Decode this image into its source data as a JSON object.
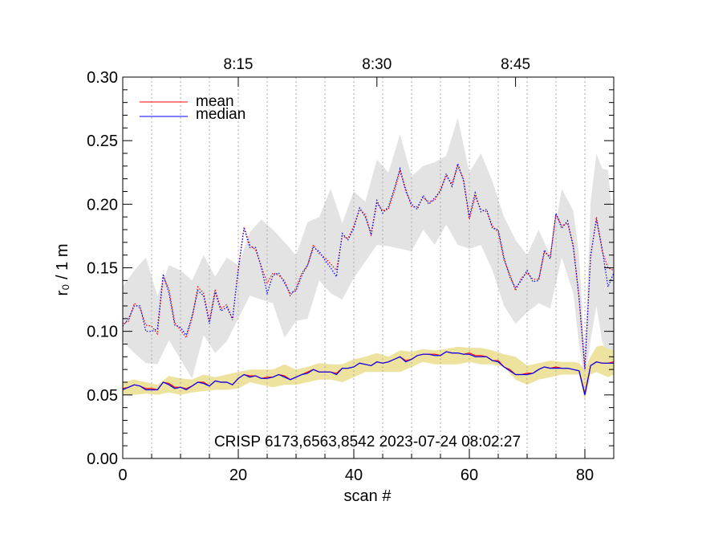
{
  "chart_data": {
    "type": "line",
    "xlabel": "scan #",
    "ylabel": "r₀ / 1 m",
    "xlim": [
      0,
      85
    ],
    "ylim": [
      0,
      0.3
    ],
    "x_ticks": [
      0,
      20,
      40,
      60,
      80
    ],
    "x_tick_labels": [
      "0",
      "20",
      "40",
      "60",
      "80"
    ],
    "y_ticks": [
      0,
      0.05,
      0.1,
      0.15,
      0.2,
      0.25,
      0.3
    ],
    "y_tick_labels": [
      "0.00",
      "0.05",
      "0.10",
      "0.15",
      "0.20",
      "0.25",
      "0.30"
    ],
    "top_axis": {
      "ticks": [
        20,
        44,
        68
      ],
      "labels": [
        "8:15",
        "8:30",
        "8:45"
      ]
    },
    "vertical_gridlines_x": [
      5,
      10,
      15,
      20,
      25,
      30,
      35,
      40,
      45,
      50,
      55,
      60,
      65,
      70,
      75,
      80
    ],
    "annotation": "CRISP 6173,6563,8542 2023-07-24 08:02:27",
    "legend": [
      {
        "label": "mean",
        "color": "#ff0000"
      },
      {
        "label": "median",
        "color": "#0000ff"
      }
    ],
    "colors": {
      "upper_band": "#e3e3e3",
      "lower_band": "#ede29e",
      "mean": "#ff0000",
      "median": "#0000ff",
      "gridline": "#aaaaaa"
    },
    "series": [
      {
        "name": "upper mean",
        "style": "dotted",
        "color": "#ff0000",
        "x": [
          0,
          1,
          2,
          3,
          4,
          5,
          6,
          7,
          8,
          9,
          10,
          11,
          12,
          13,
          14,
          15,
          16,
          17,
          18,
          19,
          20,
          21,
          22,
          23,
          24,
          25,
          26,
          27,
          28,
          29,
          30,
          31,
          32,
          33,
          34,
          35,
          36,
          37,
          38,
          39,
          40,
          41,
          42,
          43,
          44,
          45,
          46,
          47,
          48,
          49,
          50,
          51,
          52,
          53,
          54,
          55,
          56,
          57,
          58,
          59,
          60,
          61,
          62,
          63,
          64,
          65,
          66,
          67,
          68,
          69,
          70,
          71,
          72,
          73,
          74,
          75,
          76,
          77,
          78,
          79,
          80,
          81,
          82,
          83,
          84,
          85
        ],
        "values": [
          0.106,
          0.108,
          0.122,
          0.118,
          0.105,
          0.104,
          0.098,
          0.143,
          0.133,
          0.107,
          0.101,
          0.095,
          0.11,
          0.135,
          0.13,
          0.108,
          0.133,
          0.118,
          0.121,
          0.109,
          0.15,
          0.182,
          0.168,
          0.164,
          0.151,
          0.138,
          0.146,
          0.144,
          0.14,
          0.128,
          0.134,
          0.146,
          0.152,
          0.168,
          0.161,
          0.158,
          0.153,
          0.148,
          0.175,
          0.173,
          0.183,
          0.196,
          0.192,
          0.175,
          0.201,
          0.195,
          0.196,
          0.21,
          0.226,
          0.212,
          0.198,
          0.198,
          0.205,
          0.202,
          0.203,
          0.212,
          0.222,
          0.216,
          0.23,
          0.22,
          0.188,
          0.206,
          0.196,
          0.194,
          0.183,
          0.178,
          0.156,
          0.145,
          0.132,
          0.142,
          0.146,
          0.141,
          0.141,
          0.162,
          0.159,
          0.192,
          0.183,
          0.185,
          0.168,
          0.125,
          0.072,
          0.158,
          0.19,
          0.163,
          0.15,
          0.148
        ]
      },
      {
        "name": "upper median",
        "style": "dotted",
        "color": "#0000ff",
        "x": [
          0,
          1,
          2,
          3,
          4,
          5,
          6,
          7,
          8,
          9,
          10,
          11,
          12,
          13,
          14,
          15,
          16,
          17,
          18,
          19,
          20,
          21,
          22,
          23,
          24,
          25,
          26,
          27,
          28,
          29,
          30,
          31,
          32,
          33,
          34,
          35,
          36,
          37,
          38,
          39,
          40,
          41,
          42,
          43,
          44,
          45,
          46,
          47,
          48,
          49,
          50,
          51,
          52,
          53,
          54,
          55,
          56,
          57,
          58,
          59,
          60,
          61,
          62,
          63,
          64,
          65,
          66,
          67,
          68,
          69,
          70,
          71,
          72,
          73,
          74,
          75,
          76,
          77,
          78,
          79,
          80,
          81,
          82,
          83,
          84,
          85
        ],
        "values": [
          0.104,
          0.11,
          0.12,
          0.12,
          0.1,
          0.1,
          0.102,
          0.145,
          0.13,
          0.105,
          0.103,
          0.097,
          0.112,
          0.132,
          0.128,
          0.106,
          0.131,
          0.116,
          0.119,
          0.11,
          0.148,
          0.181,
          0.166,
          0.166,
          0.15,
          0.13,
          0.144,
          0.146,
          0.138,
          0.13,
          0.132,
          0.144,
          0.152,
          0.166,
          0.163,
          0.156,
          0.15,
          0.143,
          0.177,
          0.172,
          0.181,
          0.197,
          0.19,
          0.177,
          0.203,
          0.193,
          0.198,
          0.212,
          0.228,
          0.21,
          0.2,
          0.196,
          0.207,
          0.2,
          0.205,
          0.21,
          0.224,
          0.214,
          0.232,
          0.218,
          0.19,
          0.209,
          0.194,
          0.196,
          0.181,
          0.18,
          0.158,
          0.143,
          0.134,
          0.14,
          0.148,
          0.139,
          0.14,
          0.164,
          0.157,
          0.193,
          0.181,
          0.187,
          0.166,
          0.127,
          0.07,
          0.16,
          0.188,
          0.165,
          0.135,
          0.146
        ]
      },
      {
        "name": "lower mean",
        "style": "solid",
        "color": "#ff0000",
        "x": [
          0,
          1,
          2,
          3,
          4,
          5,
          6,
          7,
          8,
          9,
          10,
          11,
          12,
          13,
          14,
          15,
          16,
          17,
          18,
          19,
          20,
          21,
          22,
          23,
          24,
          25,
          26,
          27,
          28,
          29,
          30,
          31,
          32,
          33,
          34,
          35,
          36,
          37,
          38,
          39,
          40,
          41,
          42,
          43,
          44,
          45,
          46,
          47,
          48,
          49,
          50,
          51,
          52,
          53,
          54,
          55,
          56,
          57,
          58,
          59,
          60,
          61,
          62,
          63,
          64,
          65,
          66,
          67,
          68,
          69,
          70,
          71,
          72,
          73,
          74,
          75,
          76,
          77,
          78,
          79,
          80,
          81,
          82,
          83,
          84,
          85
        ],
        "values": [
          0.055,
          0.056,
          0.058,
          0.057,
          0.055,
          0.055,
          0.054,
          0.06,
          0.059,
          0.056,
          0.056,
          0.055,
          0.057,
          0.06,
          0.06,
          0.057,
          0.061,
          0.06,
          0.06,
          0.058,
          0.063,
          0.066,
          0.065,
          0.065,
          0.063,
          0.064,
          0.064,
          0.066,
          0.065,
          0.062,
          0.064,
          0.066,
          0.068,
          0.07,
          0.068,
          0.068,
          0.068,
          0.067,
          0.071,
          0.071,
          0.072,
          0.075,
          0.074,
          0.073,
          0.076,
          0.075,
          0.076,
          0.078,
          0.08,
          0.077,
          0.078,
          0.081,
          0.082,
          0.082,
          0.082,
          0.081,
          0.084,
          0.083,
          0.083,
          0.082,
          0.083,
          0.081,
          0.081,
          0.08,
          0.077,
          0.077,
          0.072,
          0.07,
          0.066,
          0.066,
          0.067,
          0.067,
          0.07,
          0.072,
          0.071,
          0.072,
          0.071,
          0.071,
          0.07,
          0.069,
          0.051,
          0.073,
          0.076,
          0.075,
          0.075,
          0.076
        ]
      },
      {
        "name": "lower median",
        "style": "solid",
        "color": "#0000ff",
        "x": [
          0,
          1,
          2,
          3,
          4,
          5,
          6,
          7,
          8,
          9,
          10,
          11,
          12,
          13,
          14,
          15,
          16,
          17,
          18,
          19,
          20,
          21,
          22,
          23,
          24,
          25,
          26,
          27,
          28,
          29,
          30,
          31,
          32,
          33,
          34,
          35,
          36,
          37,
          38,
          39,
          40,
          41,
          42,
          43,
          44,
          45,
          46,
          47,
          48,
          49,
          50,
          51,
          52,
          53,
          54,
          55,
          56,
          57,
          58,
          59,
          60,
          61,
          62,
          63,
          64,
          65,
          66,
          67,
          68,
          69,
          70,
          71,
          72,
          73,
          74,
          75,
          76,
          77,
          78,
          79,
          80,
          81,
          82,
          83,
          84,
          85
        ],
        "values": [
          0.054,
          0.056,
          0.058,
          0.057,
          0.054,
          0.054,
          0.054,
          0.06,
          0.058,
          0.055,
          0.056,
          0.054,
          0.057,
          0.06,
          0.059,
          0.057,
          0.061,
          0.06,
          0.06,
          0.058,
          0.063,
          0.066,
          0.064,
          0.065,
          0.063,
          0.063,
          0.064,
          0.066,
          0.064,
          0.062,
          0.064,
          0.066,
          0.067,
          0.07,
          0.068,
          0.068,
          0.068,
          0.066,
          0.071,
          0.071,
          0.072,
          0.075,
          0.074,
          0.073,
          0.076,
          0.075,
          0.076,
          0.078,
          0.08,
          0.076,
          0.078,
          0.081,
          0.082,
          0.082,
          0.081,
          0.081,
          0.084,
          0.083,
          0.083,
          0.082,
          0.082,
          0.08,
          0.08,
          0.08,
          0.077,
          0.076,
          0.072,
          0.069,
          0.066,
          0.066,
          0.066,
          0.067,
          0.07,
          0.072,
          0.071,
          0.071,
          0.071,
          0.071,
          0.07,
          0.069,
          0.05,
          0.073,
          0.076,
          0.075,
          0.075,
          0.075
        ]
      }
    ],
    "bands": [
      {
        "name": "upper range",
        "color": "#e3e3e3",
        "x": [
          0,
          2,
          4,
          6,
          8,
          10,
          12,
          14,
          16,
          18,
          20,
          22,
          24,
          26,
          28,
          30,
          32,
          34,
          36,
          38,
          40,
          42,
          44,
          46,
          48,
          50,
          52,
          54,
          56,
          58,
          60,
          62,
          64,
          66,
          68,
          70,
          72,
          74,
          76,
          78,
          79,
          80,
          81,
          82,
          83,
          84,
          85
        ],
        "upper": [
          0.135,
          0.148,
          0.158,
          0.128,
          0.152,
          0.148,
          0.14,
          0.16,
          0.143,
          0.158,
          0.152,
          0.178,
          0.188,
          0.18,
          0.17,
          0.16,
          0.186,
          0.19,
          0.212,
          0.185,
          0.21,
          0.202,
          0.235,
          0.225,
          0.255,
          0.222,
          0.23,
          0.233,
          0.238,
          0.268,
          0.225,
          0.24,
          0.218,
          0.19,
          0.172,
          0.16,
          0.18,
          0.16,
          0.212,
          0.195,
          0.16,
          0.08,
          0.202,
          0.24,
          0.228,
          0.227,
          0.18
        ],
        "lower": [
          0.092,
          0.083,
          0.075,
          0.074,
          0.093,
          0.078,
          0.063,
          0.097,
          0.083,
          0.092,
          0.11,
          0.128,
          0.125,
          0.122,
          0.095,
          0.108,
          0.11,
          0.14,
          0.13,
          0.125,
          0.142,
          0.155,
          0.168,
          0.167,
          0.165,
          0.163,
          0.18,
          0.168,
          0.184,
          0.168,
          0.165,
          0.168,
          0.148,
          0.12,
          0.106,
          0.115,
          0.122,
          0.118,
          0.158,
          0.13,
          0.09,
          0.062,
          0.093,
          0.12,
          0.092,
          0.08,
          0.086
        ]
      },
      {
        "name": "lower range",
        "color": "#ede29e",
        "x": [
          0,
          2,
          4,
          6,
          8,
          10,
          12,
          14,
          16,
          18,
          20,
          22,
          24,
          26,
          28,
          30,
          32,
          34,
          36,
          38,
          40,
          42,
          44,
          46,
          48,
          50,
          52,
          54,
          56,
          58,
          60,
          62,
          64,
          66,
          68,
          70,
          72,
          74,
          76,
          78,
          79,
          80,
          81,
          82,
          83,
          84,
          85
        ],
        "upper": [
          0.06,
          0.062,
          0.06,
          0.058,
          0.065,
          0.063,
          0.062,
          0.066,
          0.064,
          0.066,
          0.068,
          0.07,
          0.07,
          0.07,
          0.074,
          0.07,
          0.072,
          0.075,
          0.074,
          0.074,
          0.078,
          0.08,
          0.083,
          0.08,
          0.085,
          0.084,
          0.086,
          0.085,
          0.086,
          0.088,
          0.087,
          0.087,
          0.085,
          0.082,
          0.08,
          0.073,
          0.075,
          0.077,
          0.076,
          0.076,
          0.075,
          0.07,
          0.08,
          0.088,
          0.089,
          0.086,
          0.085
        ],
        "lower": [
          0.05,
          0.05,
          0.051,
          0.05,
          0.052,
          0.05,
          0.052,
          0.053,
          0.054,
          0.054,
          0.055,
          0.06,
          0.058,
          0.056,
          0.058,
          0.058,
          0.06,
          0.062,
          0.062,
          0.06,
          0.064,
          0.068,
          0.068,
          0.068,
          0.068,
          0.072,
          0.076,
          0.074,
          0.074,
          0.074,
          0.076,
          0.074,
          0.074,
          0.072,
          0.062,
          0.058,
          0.062,
          0.064,
          0.066,
          0.066,
          0.066,
          0.046,
          0.066,
          0.068,
          0.066,
          0.064,
          0.066
        ]
      }
    ]
  }
}
